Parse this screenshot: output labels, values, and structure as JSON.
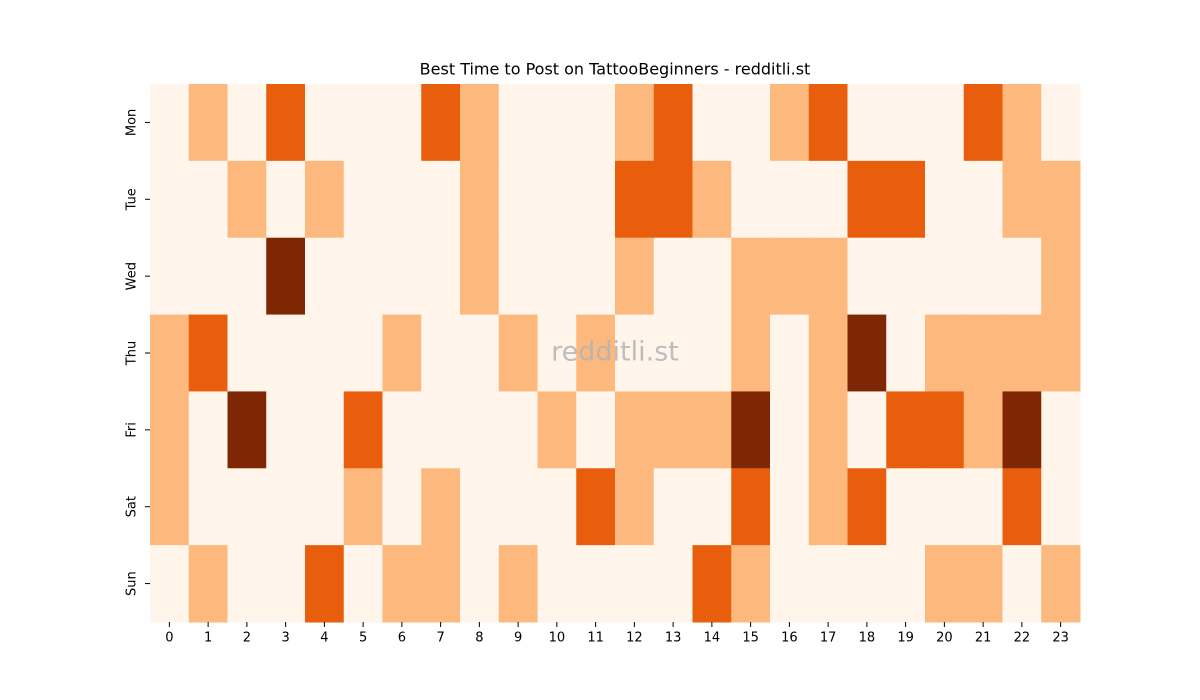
{
  "chart_data": {
    "type": "heatmap",
    "title": "Best Time to Post on TattooBeginners - redditli.st",
    "watermark": "redditli.st",
    "x": [
      0,
      1,
      2,
      3,
      4,
      5,
      6,
      7,
      8,
      9,
      10,
      11,
      12,
      13,
      14,
      15,
      16,
      17,
      18,
      19,
      20,
      21,
      22,
      23
    ],
    "y": [
      "Mon",
      "Tue",
      "Wed",
      "Thu",
      "Fri",
      "Sat",
      "Sun"
    ],
    "values": [
      [
        0,
        1,
        0,
        2,
        0,
        0,
        0,
        2,
        1,
        0,
        0,
        0,
        1,
        2,
        0,
        0,
        1,
        2,
        0,
        0,
        0,
        2,
        1,
        0
      ],
      [
        0,
        0,
        1,
        0,
        1,
        0,
        0,
        0,
        1,
        0,
        0,
        0,
        2,
        2,
        1,
        0,
        0,
        0,
        2,
        2,
        0,
        0,
        1,
        1
      ],
      [
        0,
        0,
        0,
        3,
        0,
        0,
        0,
        0,
        1,
        0,
        0,
        0,
        1,
        0,
        0,
        1,
        1,
        1,
        0,
        0,
        0,
        0,
        0,
        1
      ],
      [
        1,
        2,
        0,
        0,
        0,
        0,
        1,
        0,
        0,
        1,
        0,
        1,
        0,
        0,
        0,
        1,
        0,
        1,
        3,
        0,
        1,
        1,
        1,
        1
      ],
      [
        1,
        0,
        3,
        0,
        0,
        2,
        0,
        0,
        0,
        0,
        1,
        0,
        1,
        1,
        1,
        3,
        0,
        1,
        0,
        2,
        2,
        1,
        3,
        0
      ],
      [
        1,
        0,
        0,
        0,
        0,
        1,
        0,
        1,
        0,
        0,
        0,
        2,
        1,
        0,
        0,
        2,
        0,
        1,
        2,
        0,
        0,
        0,
        2,
        0
      ],
      [
        0,
        1,
        0,
        0,
        2,
        0,
        1,
        1,
        0,
        1,
        0,
        0,
        0,
        0,
        2,
        1,
        0,
        0,
        0,
        0,
        1,
        1,
        0,
        1
      ]
    ],
    "zlim": [
      0,
      3
    ],
    "colors": [
      "#fff5eb",
      "#fdb97d",
      "#e95e0d",
      "#7f2704"
    ]
  }
}
